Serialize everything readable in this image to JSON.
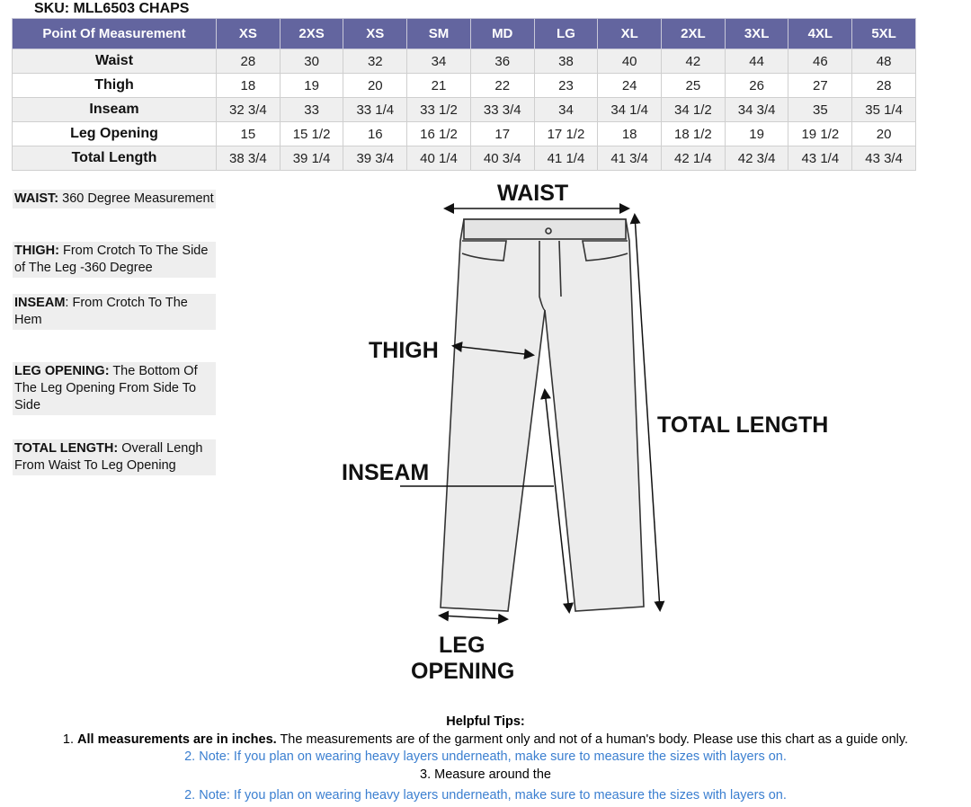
{
  "sku": "SKU: MLL6503 CHAPS",
  "table": {
    "header": [
      "Point Of Measurement",
      "XS",
      "2XS",
      "XS",
      "SM",
      "MD",
      "LG",
      "XL",
      "2XL",
      "3XL",
      "4XL",
      "5XL"
    ],
    "rows": [
      {
        "label": "Waist",
        "values": [
          "28",
          "30",
          "32",
          "34",
          "36",
          "38",
          "40",
          "42",
          "44",
          "46",
          "48"
        ]
      },
      {
        "label": "Thigh",
        "values": [
          "18",
          "19",
          "20",
          "21",
          "22",
          "23",
          "24",
          "25",
          "26",
          "27",
          "28"
        ]
      },
      {
        "label": "Inseam",
        "values": [
          "32 3/4",
          "33",
          "33 1/4",
          "33 1/2",
          "33 3/4",
          "34",
          "34 1/4",
          "34 1/2",
          "34 3/4",
          "35",
          "35 1/4"
        ]
      },
      {
        "label": "Leg Opening",
        "values": [
          "15",
          "15 1/2",
          "16",
          "16 1/2",
          "17",
          "17 1/2",
          "18",
          "18 1/2",
          "19",
          "19 1/2",
          "20"
        ]
      },
      {
        "label": "Total Length",
        "values": [
          "38 3/4",
          "39 1/4",
          "39 3/4",
          "40 1/4",
          "40 3/4",
          "41 1/4",
          "41 3/4",
          "42 1/4",
          "42 3/4",
          "43 1/4",
          "43 3/4"
        ]
      }
    ],
    "header_color": "#63659f"
  },
  "descriptions": [
    {
      "term": "WAIST:",
      "text": " 360 Degree Measurement"
    },
    {
      "term": "THIGH:",
      "text": " From Crotch To The Side of The Leg -360 Degree"
    },
    {
      "term": "INSEAM",
      "text": ": From Crotch To The Hem"
    },
    {
      "term": "LEG OPENING:",
      "text": " The Bottom Of The Leg Opening From Side To Side"
    },
    {
      "term": "TOTAL LENGTH:",
      "text": " Overall Lengh From Waist To Leg Opening"
    }
  ],
  "diagram": {
    "waist": "WAIST",
    "thigh": "THIGH",
    "inseam": "INSEAM",
    "total_length": "TOTAL LENGTH",
    "leg_opening_1": "LEG",
    "leg_opening_2": "OPENING"
  },
  "tips": {
    "title": "Helpful Tips:",
    "tip1_bold": "All measurements are in inches.",
    "tip1_prefix": "1. ",
    "tip1_rest": " The measurements are of the garment only and not of a human's body. Please use this chart as a guide only.",
    "tip2": "2. Note: If you plan on wearing heavy layers underneath, make sure to measure the sizes with layers on.",
    "tip3": "3. Measure around the",
    "tip4": "2. Note: If you plan on wearing heavy layers underneath, make sure to measure the sizes with layers on."
  }
}
